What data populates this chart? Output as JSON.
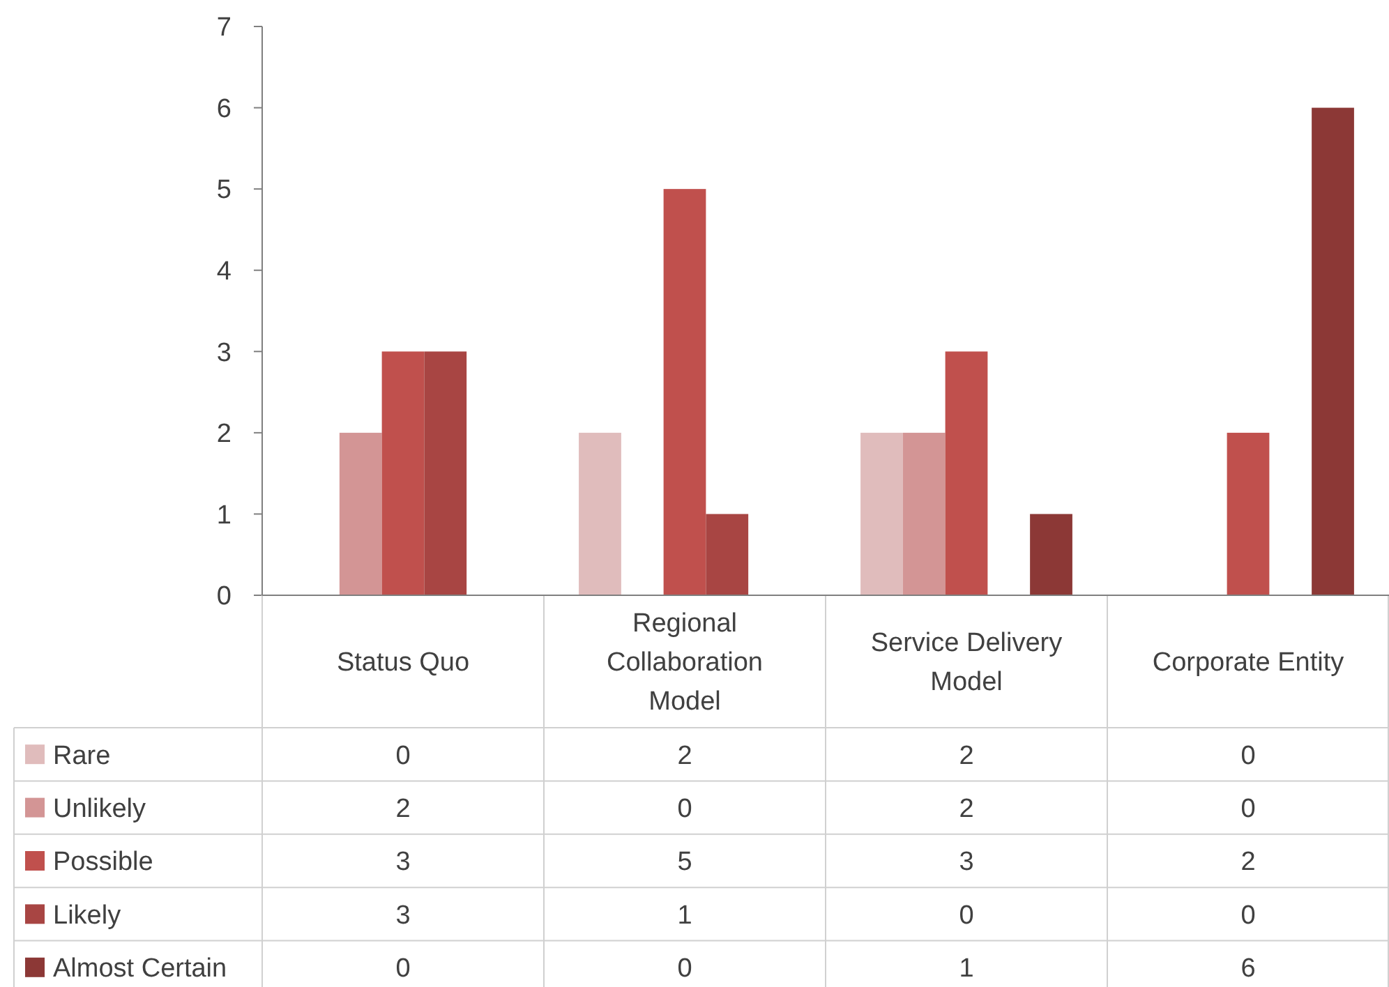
{
  "chart_data": {
    "type": "bar",
    "categories": [
      "Status Quo",
      "Regional Collaboration Model",
      "Service Delivery Model",
      "Corporate Entity"
    ],
    "series": [
      {
        "name": "Rare",
        "color": "#e0bcbc",
        "values": [
          0,
          2,
          2,
          0
        ]
      },
      {
        "name": "Unlikely",
        "color": "#d39595",
        "values": [
          2,
          0,
          2,
          0
        ]
      },
      {
        "name": "Possible",
        "color": "#c0504d",
        "values": [
          3,
          5,
          3,
          2
        ]
      },
      {
        "name": "Likely",
        "color": "#a84543",
        "values": [
          3,
          1,
          0,
          0
        ]
      },
      {
        "name": "Almost Certain",
        "color": "#8c3836",
        "values": [
          0,
          0,
          1,
          6
        ]
      }
    ],
    "ylim": [
      0,
      7
    ],
    "yticks": [
      0,
      1,
      2,
      3,
      4,
      5,
      6,
      7
    ],
    "grid": false,
    "legend": "bottom",
    "data_labels": true
  }
}
